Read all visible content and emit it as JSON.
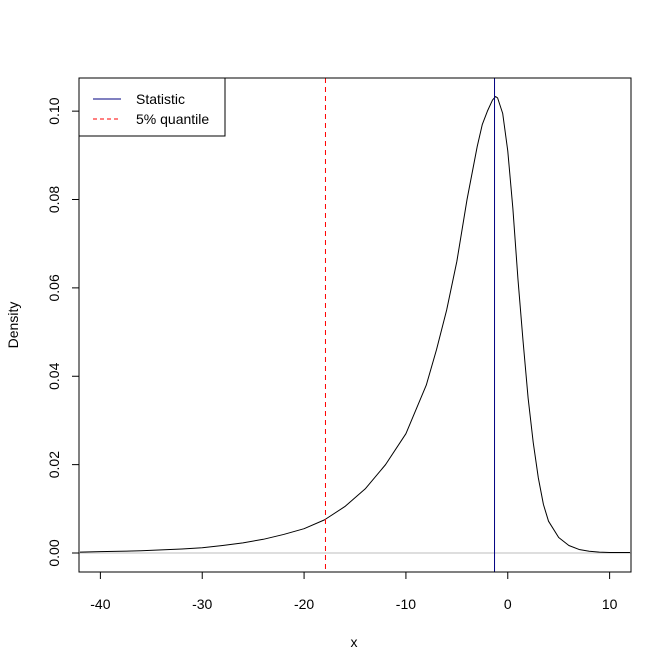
{
  "chart_data": {
    "type": "line",
    "title": "",
    "xlabel": "x",
    "ylabel": "Density",
    "xlim": [
      -42.1,
      12.1
    ],
    "ylim": [
      -0.0043,
      0.1075
    ],
    "x_ticks": [
      -40,
      -30,
      -20,
      -10,
      0,
      10
    ],
    "x_tick_labels": [
      "-40",
      "-30",
      "-20",
      "-10",
      "0",
      "10"
    ],
    "y_ticks": [
      0.0,
      0.02,
      0.04,
      0.06,
      0.08,
      0.1
    ],
    "y_tick_labels": [
      "0.00",
      "0.02",
      "0.04",
      "0.06",
      "0.08",
      "0.10"
    ],
    "grid": false,
    "series": [
      {
        "color": "#000000",
        "x": [
          -42,
          -40,
          -38,
          -36,
          -34,
          -32,
          -30,
          -28,
          -26,
          -24,
          -22,
          -20,
          -18,
          -16,
          -14,
          -12,
          -10,
          -8,
          -7,
          -6,
          -5,
          -4,
          -3,
          -2.5,
          -2,
          -1.5,
          -1.2,
          -1,
          -0.5,
          0,
          0.5,
          1,
          1.5,
          2,
          2.5,
          3,
          3.5,
          4,
          5,
          6,
          7,
          8,
          9,
          10,
          12
        ],
        "y": [
          0.0002,
          0.0003,
          0.0004,
          0.0005,
          0.0007,
          0.0009,
          0.0012,
          0.0017,
          0.0023,
          0.0031,
          0.0042,
          0.0055,
          0.0075,
          0.0105,
          0.0145,
          0.02,
          0.027,
          0.038,
          0.046,
          0.055,
          0.066,
          0.08,
          0.092,
          0.097,
          0.1,
          0.1025,
          0.1033,
          0.103,
          0.0995,
          0.091,
          0.078,
          0.062,
          0.048,
          0.035,
          0.025,
          0.017,
          0.011,
          0.0072,
          0.0035,
          0.0017,
          0.0008,
          0.0004,
          0.0002,
          0.0001,
          0.0001
        ]
      }
    ],
    "horizontal_lines": [
      {
        "y": 0,
        "color": "#bebebe"
      }
    ],
    "vertical_lines": [
      {
        "name": "Statistic",
        "x": -1.3,
        "color": "#000080",
        "dash": "solid"
      },
      {
        "name": "5% quantile",
        "x": -17.9,
        "color": "#ff0000",
        "dash": "dashed"
      }
    ],
    "legend": {
      "placement": "top-left",
      "entries": [
        {
          "label": "Statistic",
          "color": "#000080",
          "dash": "solid"
        },
        {
          "label": "5% quantile",
          "color": "#ff0000",
          "dash": "dashed"
        }
      ]
    }
  }
}
